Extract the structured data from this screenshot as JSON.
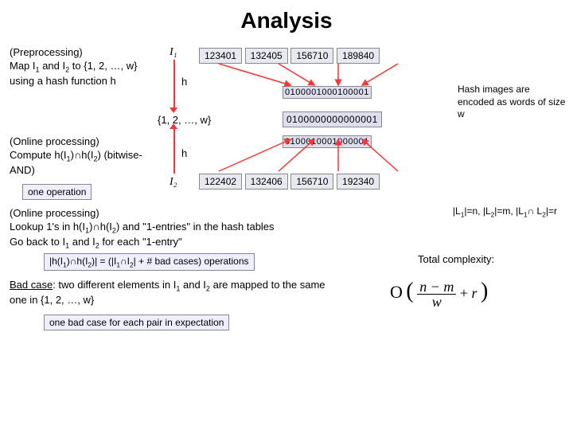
{
  "title": "Analysis",
  "left": {
    "pre_heading": "(Preprocessing)",
    "pre_body_html": "Map I<sub>1</sub> and I<sub>2</sub> to {1, 2, …, w} using a hash function h",
    "online1_heading": "(Online processing)",
    "online1_body_html": "Compute h(I<sub>1</sub>)∩h(I<sub>2</sub>) (bitwise-AND)",
    "one_op": "one operation"
  },
  "right_note_html": "Hash images are encoded as words of size w",
  "labels": {
    "I1": "I₁",
    "I2": "I₂",
    "h1": "h",
    "h2": "h",
    "set": "{1, 2, …, w}"
  },
  "row_I1": [
    "123401",
    "132405",
    "156710",
    "189840"
  ],
  "row_I2": [
    "122402",
    "132406",
    "156710",
    "192340"
  ],
  "bin1": "0100001000100001",
  "bin_mid": "0100000000000001",
  "bin2": "0100010001000001",
  "online2_heading": "(Online processing)",
  "online2_l1_html": "Lookup 1's in h(I<sub>1</sub>)∩h(I<sub>2</sub>) and \"1-entries\" in the hash tables",
  "online2_l2_html": "Go back to I<sub>1</sub> and I<sub>2</sub> for each \"1-entry\"",
  "sizes_html": "|L<sub>1</sub>|=n, |L<sub>2</sub>|=m, |L<sub>1</sub>∩ L<sub>2</sub>|=r",
  "ops_box_html": "|h(I<sub>1</sub>)∩h(I<sub>2</sub>)| = (|I<sub>1</sub>∩I<sub>2</sub>| + # bad cases) operations",
  "total": "Total complexity:",
  "badcase_html": "<u>Bad case</u>: two different elements in I<sub>1</sub> and I<sub>2</sub> are mapped to the same one in {1, 2, …, w}",
  "badbox": "one bad case for each pair in expectation",
  "bigO_html": "O ( (n−m)/w + r )",
  "colors": {
    "arrow": "#ff3333",
    "cellbg": "#e8e8f0",
    "boxbg": "#eef"
  }
}
